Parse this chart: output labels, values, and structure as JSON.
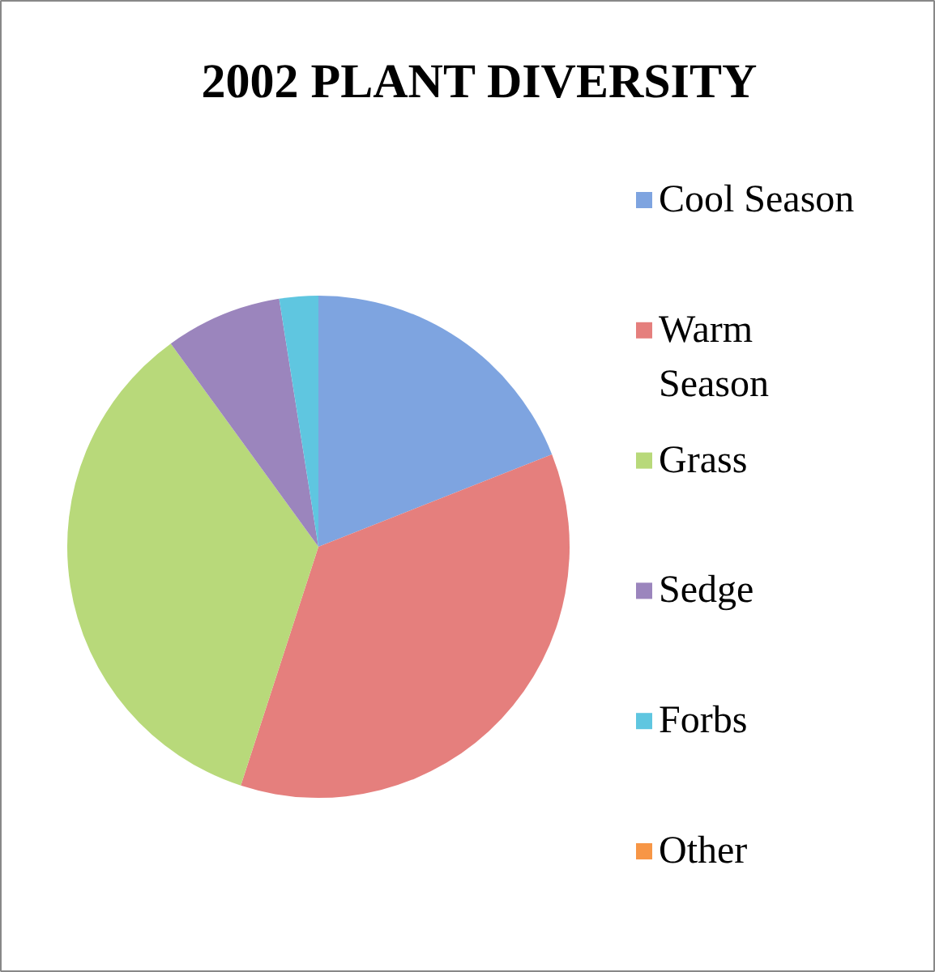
{
  "chart_data": {
    "type": "pie",
    "title": "2002 PLANT DIVERSITY",
    "categories": [
      "Cool Season",
      "Warm Season",
      "Grass",
      "Sedge",
      "Forbs",
      "Other"
    ],
    "values": [
      19,
      36,
      35,
      7.5,
      2.5,
      0
    ],
    "colors": [
      "#7ea4e0",
      "#e57f7d",
      "#b8d97a",
      "#9b85bd",
      "#5fc6e0",
      "#f79646"
    ],
    "legend": "right"
  }
}
